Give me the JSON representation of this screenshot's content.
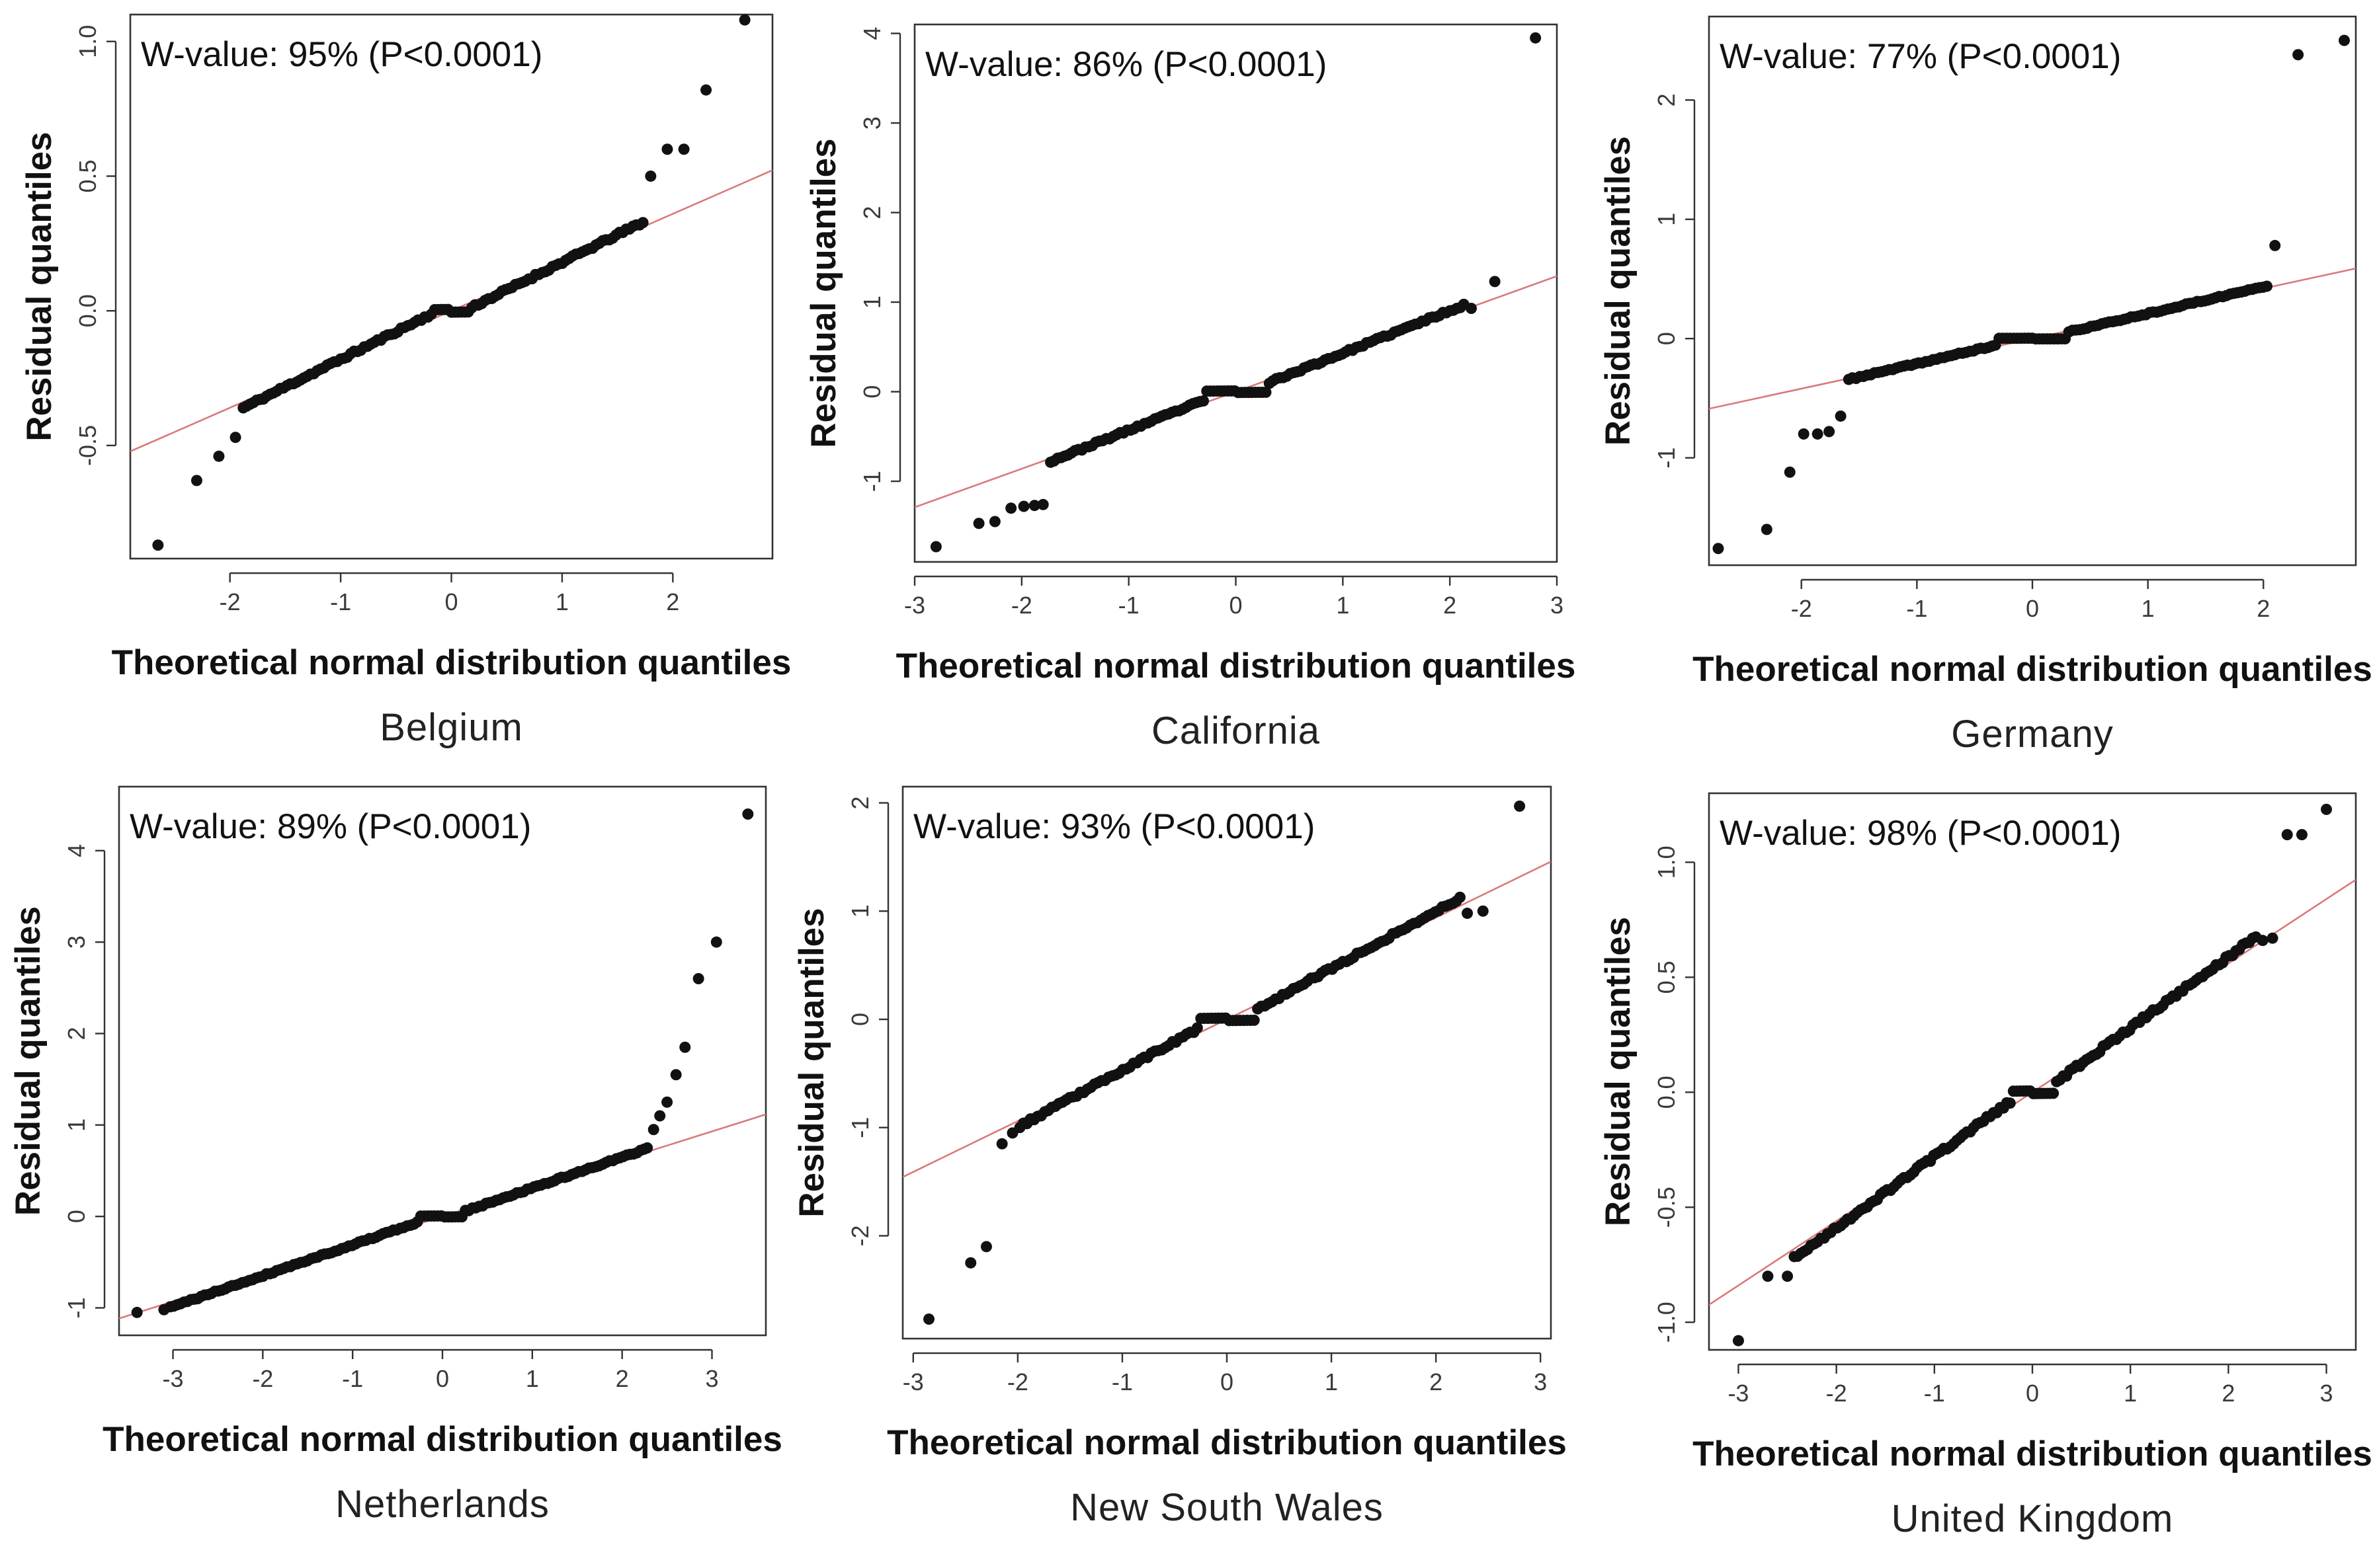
{
  "chart_data": [
    {
      "type": "scatter",
      "region": "Belgium",
      "annotation": "W-value: 95% (P<0.0001)",
      "xlabel": "Theoretical normal distribution quantiles",
      "ylabel": "Residual quantiles",
      "xlim": [
        -2.9,
        2.9
      ],
      "ylim": [
        -0.92,
        1.1
      ],
      "xticks": [
        "-2",
        "-1",
        "0",
        "1",
        "2"
      ],
      "yticks": [
        "-0.5",
        "0.0",
        "0.5",
        "1.0"
      ],
      "refline": {
        "slope": 0.18,
        "intercept": 0.0
      },
      "seed": 11,
      "shape": {
        "hw": 0.18,
        "c": 0.4
      },
      "extremes": [
        [
          -2.65,
          -0.87
        ],
        [
          -2.3,
          -0.63
        ],
        [
          -2.1,
          -0.54
        ],
        [
          -1.95,
          -0.47
        ],
        [
          1.8,
          0.5
        ],
        [
          1.95,
          0.6
        ],
        [
          2.1,
          0.6
        ],
        [
          2.3,
          0.82
        ],
        [
          2.65,
          1.08
        ]
      ],
      "points": 120
    },
    {
      "type": "scatter",
      "region": "California",
      "annotation": "W-value: 86% (P<0.0001)",
      "xlabel": "Theoretical normal distribution quantiles",
      "ylabel": "Residual quantiles",
      "xlim": [
        -3.0,
        3.0
      ],
      "ylim": [
        -1.9,
        4.1
      ],
      "xticks": [
        "-3",
        "-2",
        "-1",
        "0",
        "1",
        "2",
        "3"
      ],
      "yticks": [
        "-1",
        "0",
        "1",
        "2",
        "3",
        "4"
      ],
      "refline": {
        "slope": 0.43,
        "intercept": 0.0
      },
      "seed": 23,
      "shape": {
        "hw": 0.3,
        "c": 0.3
      },
      "extremes": [
        [
          -2.8,
          -1.73
        ],
        [
          -2.4,
          -1.47
        ],
        [
          -2.25,
          -1.45
        ],
        [
          -2.1,
          -1.3
        ],
        [
          -1.98,
          -1.28
        ],
        [
          -1.88,
          -1.27
        ],
        [
          -1.8,
          -1.26
        ],
        [
          2.2,
          0.93
        ],
        [
          2.42,
          1.23
        ],
        [
          2.8,
          3.95
        ]
      ],
      "points": 120
    },
    {
      "type": "scatter",
      "region": "Germany",
      "annotation": "W-value: 77% (P<0.0001)",
      "xlabel": "Theoretical normal distribution quantiles",
      "ylabel": "Residual quantiles",
      "xlim": [
        -2.8,
        2.8
      ],
      "ylim": [
        -1.9,
        2.7
      ],
      "xticks": [
        "-2",
        "-1",
        "0",
        "1",
        "2"
      ],
      "yticks": [
        "-1",
        "0",
        "1",
        "2"
      ],
      "refline": {
        "slope": 0.21,
        "intercept": 0.0
      },
      "seed": 37,
      "shape": {
        "hw": 0.3,
        "c": 0.2
      },
      "extremes": [
        [
          -2.72,
          -1.76
        ],
        [
          -2.3,
          -1.6
        ],
        [
          -2.1,
          -1.12
        ],
        [
          -1.98,
          -0.8
        ],
        [
          -1.86,
          -0.8
        ],
        [
          -1.76,
          -0.78
        ],
        [
          -1.66,
          -0.65
        ],
        [
          2.1,
          0.78
        ],
        [
          2.3,
          2.38
        ],
        [
          2.7,
          2.5
        ]
      ],
      "points": 115
    },
    {
      "type": "scatter",
      "region": "Netherlands",
      "annotation": "W-value: 89% (P<0.0001)",
      "xlabel": "Theoretical normal distribution quantiles",
      "ylabel": "Residual quantiles",
      "xlim": [
        -3.6,
        3.6
      ],
      "ylim": [
        -1.3,
        4.7
      ],
      "xticks": [
        "-3",
        "-2",
        "-1",
        "0",
        "1",
        "2",
        "3"
      ],
      "yticks": [
        "-1",
        "0",
        "1",
        "2",
        "3",
        "4"
      ],
      "refline": {
        "slope": 0.31,
        "intercept": 0.0
      },
      "seed": 41,
      "shape": {
        "hw": 0.25,
        "c": 0.25
      },
      "extremes": [
        [
          -3.4,
          -1.05
        ],
        [
          -3.1,
          -1.02
        ],
        [
          2.35,
          0.95
        ],
        [
          2.42,
          1.1
        ],
        [
          2.5,
          1.25
        ],
        [
          2.6,
          1.55
        ],
        [
          2.7,
          1.85
        ],
        [
          2.85,
          2.6
        ],
        [
          3.05,
          3.0
        ],
        [
          3.4,
          4.4
        ]
      ],
      "points": 140
    },
    {
      "type": "scatter",
      "region": "New South Wales",
      "annotation": "W-value: 93% (P<0.0001)",
      "xlabel": "Theoretical normal distribution quantiles",
      "ylabel": "Residual quantiles",
      "xlim": [
        -3.1,
        3.1
      ],
      "ylim": [
        -2.95,
        2.15
      ],
      "xticks": [
        "-3",
        "-2",
        "-1",
        "0",
        "1",
        "2",
        "3"
      ],
      "yticks": [
        "-2",
        "-1",
        "0",
        "1",
        "2"
      ],
      "refline": {
        "slope": 0.47,
        "intercept": 0.0
      },
      "seed": 53,
      "shape": {
        "hw": 0.28,
        "c": 0.35
      },
      "extremes": [
        [
          -2.85,
          -2.77
        ],
        [
          -2.45,
          -2.25
        ],
        [
          -2.3,
          -2.1
        ],
        [
          -2.15,
          -1.15
        ],
        [
          -2.05,
          -1.05
        ],
        [
          2.3,
          0.98
        ],
        [
          2.45,
          1.0
        ],
        [
          2.8,
          1.97
        ]
      ],
      "points": 125
    },
    {
      "type": "scatter",
      "region": "United Kingdom",
      "annotation": "W-value: 98% (P<0.0001)",
      "xlabel": "Theoretical normal distribution quantiles",
      "ylabel": "Residual quantiles",
      "xlim": [
        -3.3,
        3.3
      ],
      "ylim": [
        -1.12,
        1.3
      ],
      "xticks": [
        "-3",
        "-2",
        "-1",
        "0",
        "1",
        "2",
        "3"
      ],
      "yticks": [
        "-1.0",
        "-0.5",
        "0.0",
        "0.5",
        "1.0"
      ],
      "refline": {
        "slope": 0.28,
        "intercept": 0.0
      },
      "seed": 67,
      "shape": {
        "hw": 0.22,
        "c": 0.3
      },
      "extremes": [
        [
          -3.0,
          -1.08
        ],
        [
          -2.7,
          -0.8
        ],
        [
          -2.5,
          -0.8
        ],
        [
          2.35,
          0.66
        ],
        [
          2.45,
          0.67
        ],
        [
          2.6,
          1.12
        ],
        [
          2.75,
          1.12
        ],
        [
          3.0,
          1.23
        ]
      ],
      "points": 140
    }
  ]
}
